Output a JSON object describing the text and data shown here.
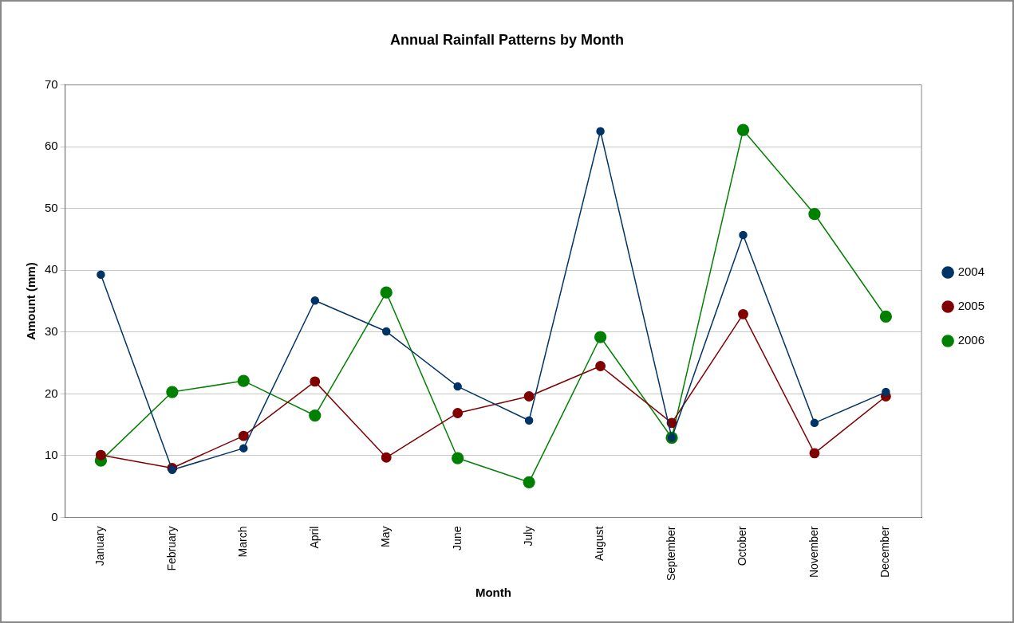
{
  "chart_data": {
    "type": "line",
    "title": "Annual Rainfall Patterns by Month",
    "xlabel": "Month",
    "ylabel": "Amount (mm)",
    "categories": [
      "January",
      "February",
      "March",
      "April",
      "May",
      "June",
      "July",
      "August",
      "September",
      "October",
      "November",
      "December"
    ],
    "series": [
      {
        "name": "2004",
        "color": "#003366",
        "values": [
          39.3,
          7.7,
          11.2,
          35.1,
          30.1,
          21.2,
          15.7,
          62.5,
          12.9,
          45.7,
          15.3,
          20.3
        ]
      },
      {
        "name": "2005",
        "color": "#800000",
        "values": [
          10.1,
          8,
          13.2,
          22,
          9.7,
          16.9,
          19.6,
          24.5,
          15.3,
          32.9,
          10.4,
          19.6
        ]
      },
      {
        "name": "2006",
        "color": "#008000",
        "values": [
          9.2,
          20.3,
          22.1,
          16.5,
          36.4,
          9.6,
          5.7,
          29.2,
          12.9,
          62.7,
          49.1,
          32.5
        ]
      }
    ],
    "ylim": [
      0,
      70
    ],
    "yticks": [
      0,
      10,
      20,
      30,
      40,
      50,
      60,
      70
    ],
    "grid": "y",
    "legend": "right",
    "marker": "circle",
    "line_style": "solid"
  }
}
